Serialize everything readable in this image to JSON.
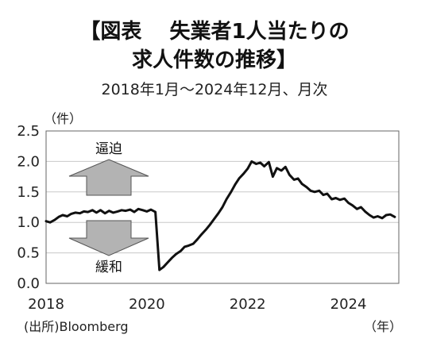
{
  "chart_data": {
    "type": "line",
    "title_line1": "【図表　 失業者1人当たりの",
    "title_line2": "求人件数の推移】",
    "subtitle": "2018年1月～2024年12月、月次",
    "ylabel": "（件）",
    "xlabel": "（年）",
    "source": "(出所)Bloomberg",
    "ylim": [
      0.0,
      2.5
    ],
    "yticks": [
      "0.0",
      "0.5",
      "1.0",
      "1.5",
      "2.0",
      "2.5"
    ],
    "xlim": [
      2018.0,
      2025.0
    ],
    "xticks": [
      "2018",
      "2020",
      "2022",
      "2024"
    ],
    "annotations": {
      "up": "逼迫",
      "down": "緩和"
    },
    "grid": true,
    "line_color": "#111111",
    "arrow_color": "#b3b3b3",
    "series": [
      {
        "name": "",
        "values": [
          [
            2018.0,
            1.02
          ],
          [
            2018.08,
            1.0
          ],
          [
            2018.17,
            1.04
          ],
          [
            2018.25,
            1.09
          ],
          [
            2018.33,
            1.12
          ],
          [
            2018.42,
            1.1
          ],
          [
            2018.5,
            1.14
          ],
          [
            2018.58,
            1.16
          ],
          [
            2018.67,
            1.15
          ],
          [
            2018.75,
            1.18
          ],
          [
            2018.83,
            1.17
          ],
          [
            2018.92,
            1.2
          ],
          [
            2019.0,
            1.16
          ],
          [
            2019.08,
            1.2
          ],
          [
            2019.17,
            1.15
          ],
          [
            2019.25,
            1.19
          ],
          [
            2019.33,
            1.16
          ],
          [
            2019.42,
            1.18
          ],
          [
            2019.5,
            1.2
          ],
          [
            2019.58,
            1.19
          ],
          [
            2019.67,
            1.21
          ],
          [
            2019.75,
            1.17
          ],
          [
            2019.83,
            1.22
          ],
          [
            2019.92,
            1.2
          ],
          [
            2020.0,
            1.18
          ],
          [
            2020.08,
            1.21
          ],
          [
            2020.17,
            1.17
          ],
          [
            2020.25,
            0.22
          ],
          [
            2020.33,
            0.27
          ],
          [
            2020.42,
            0.35
          ],
          [
            2020.5,
            0.42
          ],
          [
            2020.58,
            0.48
          ],
          [
            2020.67,
            0.53
          ],
          [
            2020.75,
            0.6
          ],
          [
            2020.83,
            0.62
          ],
          [
            2020.92,
            0.65
          ],
          [
            2021.0,
            0.72
          ],
          [
            2021.08,
            0.8
          ],
          [
            2021.17,
            0.88
          ],
          [
            2021.25,
            0.96
          ],
          [
            2021.33,
            1.05
          ],
          [
            2021.42,
            1.15
          ],
          [
            2021.5,
            1.25
          ],
          [
            2021.58,
            1.38
          ],
          [
            2021.67,
            1.5
          ],
          [
            2021.75,
            1.62
          ],
          [
            2021.83,
            1.72
          ],
          [
            2021.92,
            1.8
          ],
          [
            2022.0,
            1.88
          ],
          [
            2022.08,
            2.0
          ],
          [
            2022.17,
            1.96
          ],
          [
            2022.25,
            1.98
          ],
          [
            2022.33,
            1.92
          ],
          [
            2022.42,
            1.99
          ],
          [
            2022.5,
            1.75
          ],
          [
            2022.58,
            1.89
          ],
          [
            2022.67,
            1.85
          ],
          [
            2022.75,
            1.91
          ],
          [
            2022.83,
            1.78
          ],
          [
            2022.92,
            1.7
          ],
          [
            2023.0,
            1.72
          ],
          [
            2023.08,
            1.63
          ],
          [
            2023.17,
            1.58
          ],
          [
            2023.25,
            1.52
          ],
          [
            2023.33,
            1.5
          ],
          [
            2023.42,
            1.52
          ],
          [
            2023.5,
            1.45
          ],
          [
            2023.58,
            1.47
          ],
          [
            2023.67,
            1.38
          ],
          [
            2023.75,
            1.4
          ],
          [
            2023.83,
            1.37
          ],
          [
            2023.92,
            1.39
          ],
          [
            2024.0,
            1.32
          ],
          [
            2024.08,
            1.28
          ],
          [
            2024.17,
            1.22
          ],
          [
            2024.25,
            1.25
          ],
          [
            2024.33,
            1.18
          ],
          [
            2024.42,
            1.12
          ],
          [
            2024.5,
            1.08
          ],
          [
            2024.58,
            1.1
          ],
          [
            2024.67,
            1.07
          ],
          [
            2024.75,
            1.12
          ],
          [
            2024.83,
            1.13
          ],
          [
            2024.92,
            1.09
          ]
        ]
      }
    ]
  }
}
